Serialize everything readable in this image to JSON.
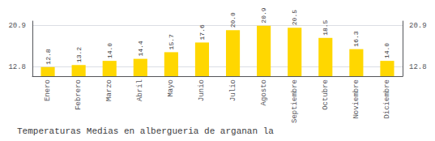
{
  "chart_data": {
    "type": "bar",
    "title": "Temperaturas Medias en albergueria de arganan la",
    "categories": [
      "Enero",
      "Febrero",
      "Marzo",
      "Abril",
      "Mayo",
      "Junio",
      "Julio",
      "Agosto",
      "Septiembre",
      "Octubre",
      "Noviembre",
      "Diciembre"
    ],
    "values": [
      12.8,
      13.2,
      14.0,
      14.4,
      15.7,
      17.6,
      20.0,
      20.9,
      20.5,
      18.5,
      16.3,
      14.0
    ],
    "value_labels": [
      "12.8",
      "13.2",
      "14.0",
      "14.4",
      "15.7",
      "17.6",
      "20.0",
      "20.9",
      "20.5",
      "18.5",
      "16.3",
      "14.0"
    ],
    "color": "#FFD700",
    "ylim": [
      11.0,
      21.8
    ],
    "yticks": [
      12.8,
      20.9
    ],
    "y2lim": [
      11.0,
      21.8
    ],
    "y2ticks": [
      12.8,
      20.9
    ],
    "grid": true,
    "data_labels": true
  }
}
